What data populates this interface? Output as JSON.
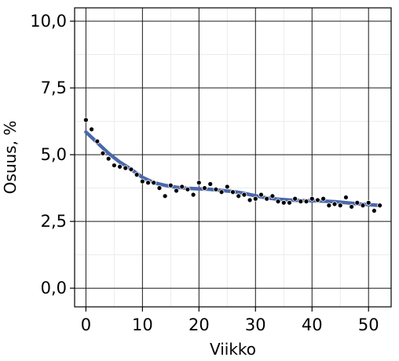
{
  "chart_data": {
    "type": "scatter",
    "xlabel": "Viikko",
    "ylabel": "Osuus, %",
    "xlim": [
      -2,
      54
    ],
    "ylim": [
      -0.7,
      10.5
    ],
    "x_ticks": [
      0,
      10,
      20,
      30,
      40,
      50
    ],
    "x_tick_labels": [
      "0",
      "10",
      "20",
      "30",
      "40",
      "50"
    ],
    "y_ticks": [
      0,
      2.5,
      5,
      7.5,
      10
    ],
    "y_tick_labels": [
      "0,0",
      "2,5",
      "5,0",
      "7,5",
      "10,0"
    ],
    "grid": true,
    "point_color": "#000000",
    "trend_color": "#4a68ad",
    "points": [
      [
        0,
        6.3
      ],
      [
        1,
        5.95
      ],
      [
        2,
        5.5
      ],
      [
        3,
        5.05
      ],
      [
        4,
        4.85
      ],
      [
        5,
        4.6
      ],
      [
        6,
        4.55
      ],
      [
        7,
        4.5
      ],
      [
        8,
        4.45
      ],
      [
        9,
        4.25
      ],
      [
        10,
        4.0
      ],
      [
        11,
        3.95
      ],
      [
        12,
        3.95
      ],
      [
        13,
        3.75
      ],
      [
        14,
        3.45
      ],
      [
        15,
        3.85
      ],
      [
        16,
        3.65
      ],
      [
        17,
        3.8
      ],
      [
        18,
        3.7
      ],
      [
        19,
        3.5
      ],
      [
        20,
        3.95
      ],
      [
        21,
        3.75
      ],
      [
        22,
        3.9
      ],
      [
        23,
        3.7
      ],
      [
        24,
        3.6
      ],
      [
        25,
        3.8
      ],
      [
        26,
        3.6
      ],
      [
        27,
        3.45
      ],
      [
        28,
        3.5
      ],
      [
        29,
        3.3
      ],
      [
        30,
        3.35
      ],
      [
        31,
        3.5
      ],
      [
        32,
        3.35
      ],
      [
        33,
        3.45
      ],
      [
        34,
        3.25
      ],
      [
        35,
        3.2
      ],
      [
        36,
        3.2
      ],
      [
        37,
        3.35
      ],
      [
        38,
        3.25
      ],
      [
        39,
        3.25
      ],
      [
        40,
        3.35
      ],
      [
        41,
        3.3
      ],
      [
        42,
        3.35
      ],
      [
        43,
        3.1
      ],
      [
        44,
        3.15
      ],
      [
        45,
        3.1
      ],
      [
        46,
        3.4
      ],
      [
        47,
        3.05
      ],
      [
        48,
        3.2
      ],
      [
        49,
        3.1
      ],
      [
        50,
        3.2
      ],
      [
        51,
        2.9
      ],
      [
        52,
        3.1
      ]
    ],
    "trend": [
      [
        0,
        5.85
      ],
      [
        2,
        5.45
      ],
      [
        4,
        5.05
      ],
      [
        6,
        4.72
      ],
      [
        8,
        4.45
      ],
      [
        10,
        4.15
      ],
      [
        12,
        3.95
      ],
      [
        14,
        3.85
      ],
      [
        16,
        3.78
      ],
      [
        18,
        3.74
      ],
      [
        20,
        3.72
      ],
      [
        22,
        3.7
      ],
      [
        24,
        3.66
      ],
      [
        26,
        3.62
      ],
      [
        28,
        3.55
      ],
      [
        30,
        3.46
      ],
      [
        32,
        3.38
      ],
      [
        34,
        3.33
      ],
      [
        36,
        3.3
      ],
      [
        38,
        3.28
      ],
      [
        40,
        3.27
      ],
      [
        42,
        3.26
      ],
      [
        44,
        3.24
      ],
      [
        46,
        3.2
      ],
      [
        48,
        3.16
      ],
      [
        50,
        3.13
      ],
      [
        52,
        3.1
      ]
    ]
  }
}
